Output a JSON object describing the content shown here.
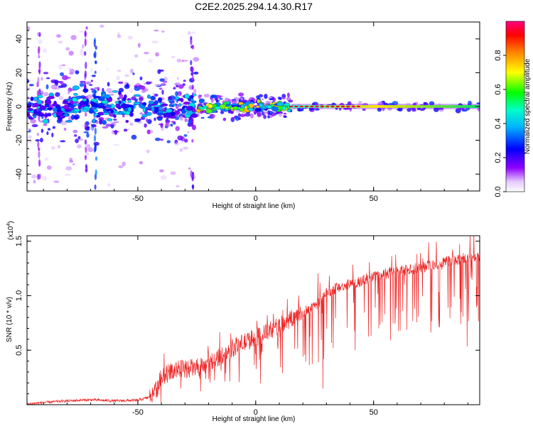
{
  "title": "C2E2.2025.294.14.30.R17",
  "colors": {
    "background": "#ffffff",
    "axis": "#000000",
    "snr_line": "#ee2222",
    "carrier": "#00cc44"
  },
  "chart_data": [
    {
      "type": "heatmap",
      "name": "spectrogram",
      "xlabel": "Height of straight line (km)",
      "ylabel": "Frequency (Hz)",
      "xlim": [
        -97,
        95
      ],
      "ylim": [
        -50,
        50
      ],
      "xticks": [
        -50,
        0,
        50
      ],
      "xtick_labels": [
        "-50",
        "0",
        "50"
      ],
      "yticks": [
        -40,
        -20,
        0,
        20,
        40
      ],
      "ytick_labels": [
        "-40",
        "-20",
        "0",
        "20",
        "40"
      ],
      "carrier_frequency": 0,
      "spread_regions": [
        {
          "x_range": [
            -97,
            -25
          ],
          "freq_spread": 12,
          "amplitude": 0.35
        },
        {
          "x_range": [
            -25,
            15
          ],
          "freq_spread": 4,
          "amplitude": 0.6
        },
        {
          "x_range": [
            15,
            95
          ],
          "freq_spread": 1.5,
          "amplitude": 0.85
        }
      ],
      "colorbar": {
        "label": "Normalized spectral amplitude",
        "range": [
          0,
          1
        ],
        "ticks": [
          0.0,
          0.2,
          0.4,
          0.6,
          0.8
        ],
        "tick_labels": [
          "0.0",
          "0.2",
          "0.4",
          "0.6",
          "0.8"
        ]
      }
    },
    {
      "type": "line",
      "name": "snr",
      "xlabel": "Height of straight line (km)",
      "ylabel": "SNR (10 * v/v)",
      "multiplier_label": "(x10",
      "multiplier_exponent": "4",
      "multiplier_close": ")",
      "xlim": [
        -97,
        95
      ],
      "ylim": [
        0,
        15500
      ],
      "xticks": [
        -50,
        0,
        50
      ],
      "xtick_labels": [
        "-50",
        "0",
        "50"
      ],
      "yticks": [
        5000,
        10000,
        15000
      ],
      "ytick_labels": [
        "0.5",
        "1.0",
        "1.5"
      ],
      "series": [
        {
          "name": "SNR",
          "x": [
            -97,
            -90,
            -80,
            -70,
            -60,
            -50,
            -45,
            -42,
            -40,
            -35,
            -30,
            -25,
            -20,
            -15,
            -10,
            -5,
            0,
            5,
            10,
            15,
            20,
            25,
            30,
            35,
            40,
            45,
            50,
            55,
            60,
            65,
            70,
            75,
            80,
            85,
            90,
            95
          ],
          "values": [
            50,
            200,
            350,
            450,
            350,
            400,
            700,
            1500,
            2500,
            3200,
            3300,
            3400,
            3800,
            4400,
            5200,
            5700,
            6100,
            6700,
            7200,
            7900,
            8500,
            9000,
            10200,
            10800,
            11100,
            11300,
            11700,
            12000,
            12200,
            12400,
            12600,
            12800,
            13100,
            13300,
            13400,
            13600
          ],
          "noise": "high-frequency fluctuation with deep downward spikes"
        }
      ]
    }
  ]
}
